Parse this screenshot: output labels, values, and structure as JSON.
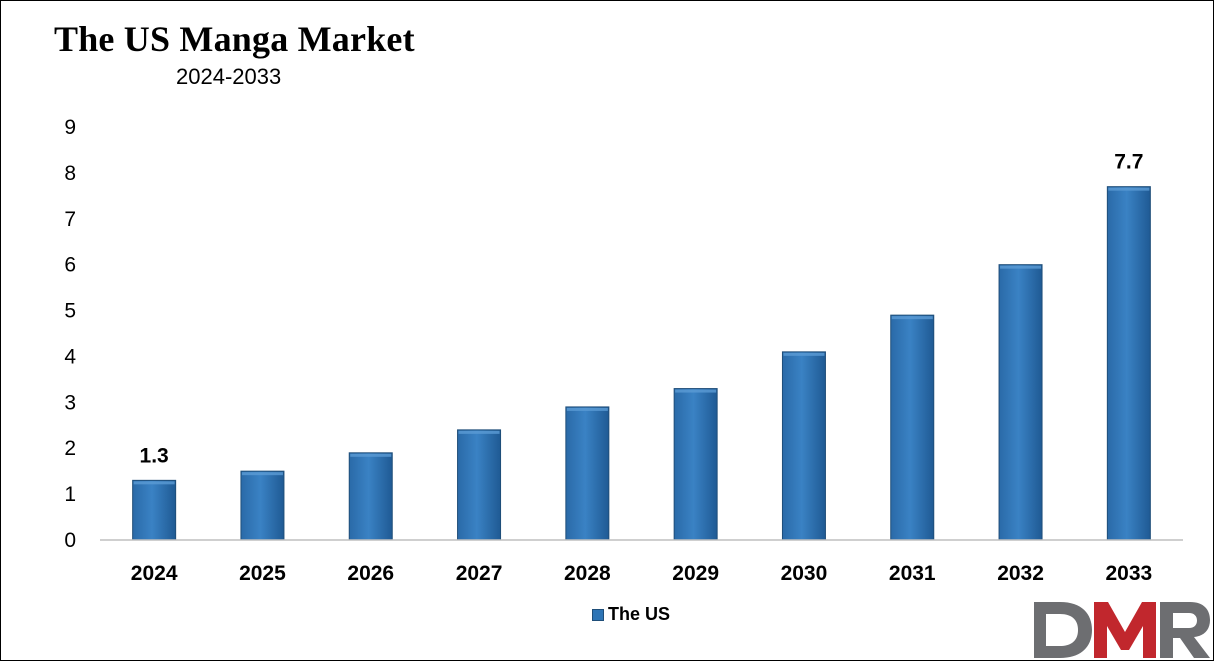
{
  "chart_data": {
    "type": "bar",
    "title": "The US Manga Market",
    "subtitle": "2024-2033",
    "categories": [
      "2024",
      "2025",
      "2026",
      "2027",
      "2028",
      "2029",
      "2030",
      "2031",
      "2032",
      "2033"
    ],
    "series": [
      {
        "name": "The US",
        "values": [
          1.3,
          1.5,
          1.9,
          2.4,
          2.9,
          3.3,
          4.1,
          4.9,
          6.0,
          7.7
        ],
        "color": "#2e75b6"
      }
    ],
    "data_labels": {
      "0": "1.3",
      "9": "7.7"
    },
    "ylim": [
      0,
      9
    ],
    "yticks": [
      "0",
      "1",
      "2",
      "3",
      "4",
      "5",
      "6",
      "7",
      "8",
      "9"
    ],
    "grid": false,
    "legend_position": "bottom"
  },
  "logo": {
    "text": "DMR",
    "colors": [
      "#6d6e71",
      "#c1272d"
    ]
  }
}
